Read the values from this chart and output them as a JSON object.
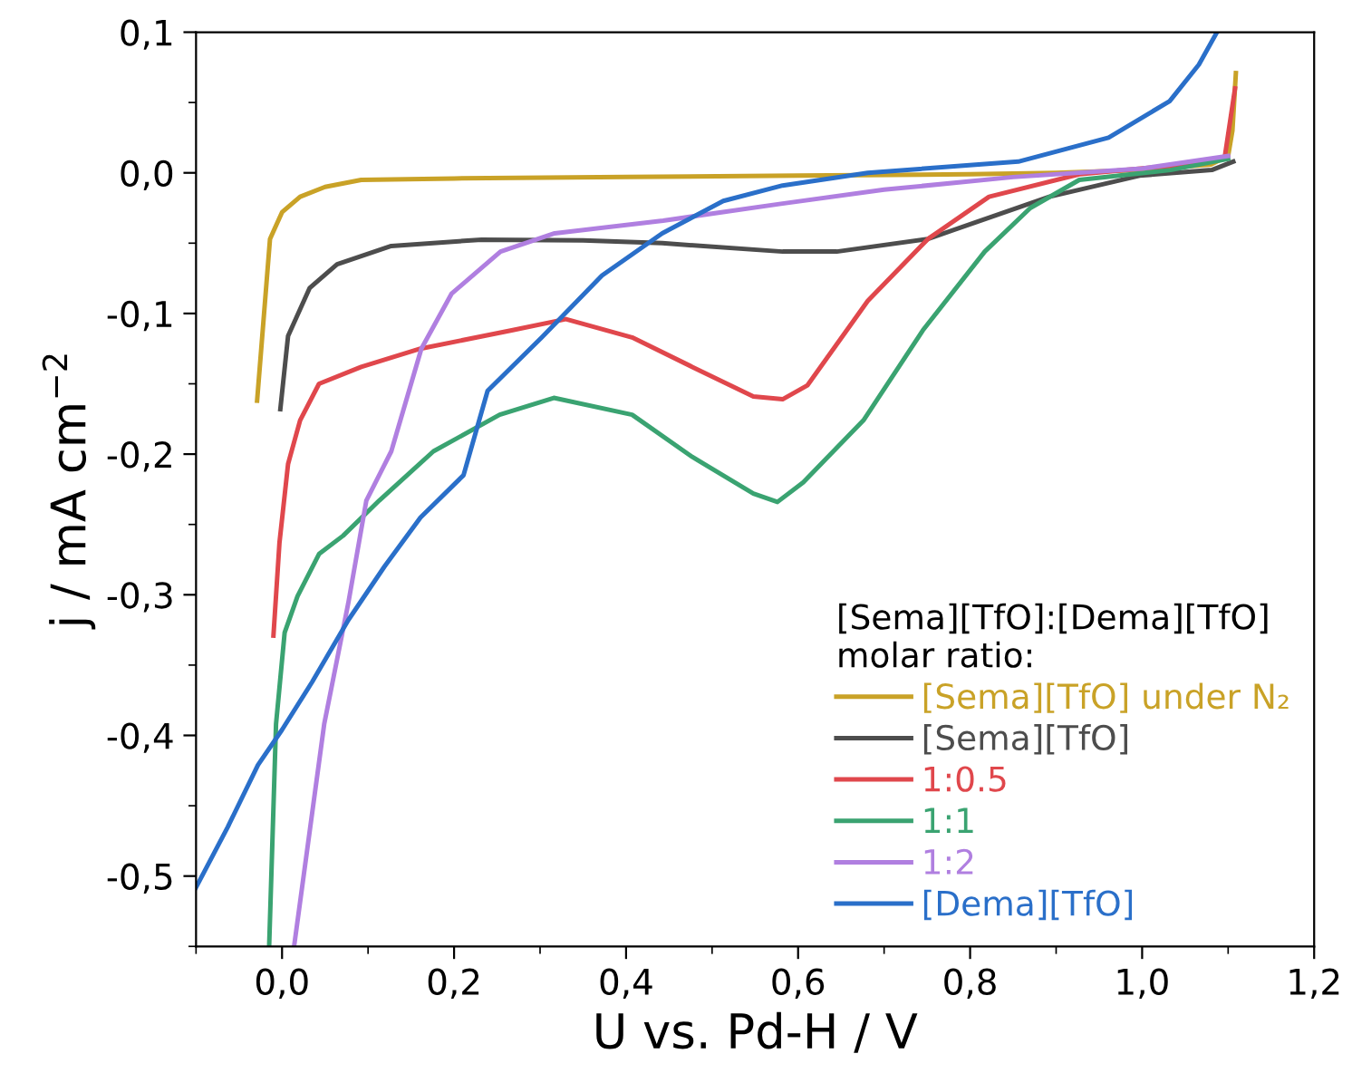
{
  "chart_data": {
    "type": "line",
    "xlabel": "U vs. Pd-H / V",
    "ylabel": "j / mA cm$^{−2}$",
    "legend_title": "[Sema][TfO]:[Dema][TfO]\nmolar ratio:",
    "xlim": [
      -0.1,
      1.2
    ],
    "ylim": [
      -0.55,
      0.1
    ],
    "xticks": [
      {
        "value": 0.0,
        "label": "0,0"
      },
      {
        "value": 0.2,
        "label": "0,2"
      },
      {
        "value": 0.4,
        "label": "0,4"
      },
      {
        "value": 0.6,
        "label": "0,6"
      },
      {
        "value": 0.8,
        "label": "0,8"
      },
      {
        "value": 1.0,
        "label": "1,0"
      },
      {
        "value": 1.2,
        "label": "1,2"
      }
    ],
    "yticks": [
      {
        "value": -0.5,
        "label": "-0,5"
      },
      {
        "value": -0.4,
        "label": "-0,4"
      },
      {
        "value": -0.3,
        "label": "-0,3"
      },
      {
        "value": -0.2,
        "label": "-0,2"
      },
      {
        "value": -0.1,
        "label": "-0,1"
      },
      {
        "value": 0.0,
        "label": "0,0"
      },
      {
        "value": 0.1,
        "label": "0,1"
      }
    ],
    "grid": false,
    "legend": "bottom right",
    "marker": "none",
    "line_style": "solid",
    "series": [
      {
        "name": "[Sema][TfO] under N₂",
        "color": "#c9a227",
        "x": [
          -0.029,
          -0.014,
          0.0,
          0.021,
          0.05,
          0.092,
          0.2,
          0.4,
          0.6,
          0.8,
          0.9,
          1.0,
          1.08,
          1.1,
          1.105,
          1.109
        ],
        "values": [
          -0.162,
          -0.047,
          -0.028,
          -0.017,
          -0.01,
          -0.005,
          -0.004,
          -0.003,
          -0.002,
          -0.001,
          0.0,
          0.002,
          0.006,
          0.012,
          0.03,
          0.071
        ]
      },
      {
        "name": "[Sema][TfO]",
        "color": "#4d4d4d",
        "x": [
          -0.002,
          0.007,
          0.032,
          0.064,
          0.127,
          0.232,
          0.35,
          0.442,
          0.582,
          0.645,
          0.751,
          0.807,
          0.892,
          0.997,
          1.081,
          1.106
        ],
        "values": [
          -0.168,
          -0.116,
          -0.082,
          -0.065,
          -0.052,
          -0.0475,
          -0.048,
          -0.05,
          -0.056,
          -0.056,
          -0.047,
          -0.035,
          -0.017,
          -0.002,
          0.002,
          0.008
        ]
      },
      {
        "name": "1:0.5",
        "color": "#e0474c",
        "x": [
          -0.01,
          -0.003,
          0.007,
          0.021,
          0.043,
          0.092,
          0.161,
          0.267,
          0.33,
          0.407,
          0.477,
          0.548,
          0.582,
          0.611,
          0.681,
          0.751,
          0.822,
          0.927,
          1.033,
          1.096,
          1.108
        ],
        "values": [
          -0.329,
          -0.263,
          -0.207,
          -0.176,
          -0.15,
          -0.138,
          -0.125,
          -0.112,
          -0.104,
          -0.117,
          -0.138,
          -0.159,
          -0.161,
          -0.151,
          -0.091,
          -0.047,
          -0.017,
          -0.001,
          0.005,
          0.011,
          0.06
        ]
      },
      {
        "name": "1:1",
        "color": "#3aa371",
        "x": [
          -0.015,
          -0.007,
          0.003,
          0.018,
          0.043,
          0.071,
          0.113,
          0.176,
          0.253,
          0.316,
          0.407,
          0.477,
          0.548,
          0.576,
          0.606,
          0.676,
          0.745,
          0.817,
          0.87,
          0.927,
          1.033,
          1.1
        ],
        "values": [
          -0.55,
          -0.392,
          -0.327,
          -0.301,
          -0.271,
          -0.258,
          -0.233,
          -0.198,
          -0.172,
          -0.16,
          -0.172,
          -0.202,
          -0.228,
          -0.234,
          -0.22,
          -0.176,
          -0.112,
          -0.056,
          -0.025,
          -0.005,
          0.002,
          0.01
        ]
      },
      {
        "name": "1:2",
        "color": "#b07fe0",
        "x": [
          0.014,
          0.049,
          0.077,
          0.098,
          0.127,
          0.162,
          0.197,
          0.254,
          0.317,
          0.443,
          0.58,
          0.7,
          0.85,
          1.0,
          1.1
        ],
        "values": [
          -0.55,
          -0.392,
          -0.306,
          -0.233,
          -0.198,
          -0.125,
          -0.086,
          -0.056,
          -0.043,
          -0.034,
          -0.022,
          -0.012,
          -0.003,
          0.003,
          0.012
        ]
      },
      {
        "name": "[Dema][TfO]",
        "color": "#2a6fc9",
        "x": [
          -0.1,
          -0.063,
          -0.028,
          0.0,
          0.035,
          0.077,
          0.119,
          0.161,
          0.211,
          0.239,
          0.302,
          0.372,
          0.442,
          0.513,
          0.582,
          0.681,
          0.856,
          0.961,
          1.032,
          1.066,
          1.087
        ],
        "values": [
          -0.508,
          -0.465,
          -0.421,
          -0.396,
          -0.362,
          -0.318,
          -0.28,
          -0.245,
          -0.215,
          -0.155,
          -0.117,
          -0.073,
          -0.043,
          -0.02,
          -0.009,
          0.0,
          0.008,
          0.025,
          0.051,
          0.077,
          0.1
        ]
      }
    ]
  }
}
